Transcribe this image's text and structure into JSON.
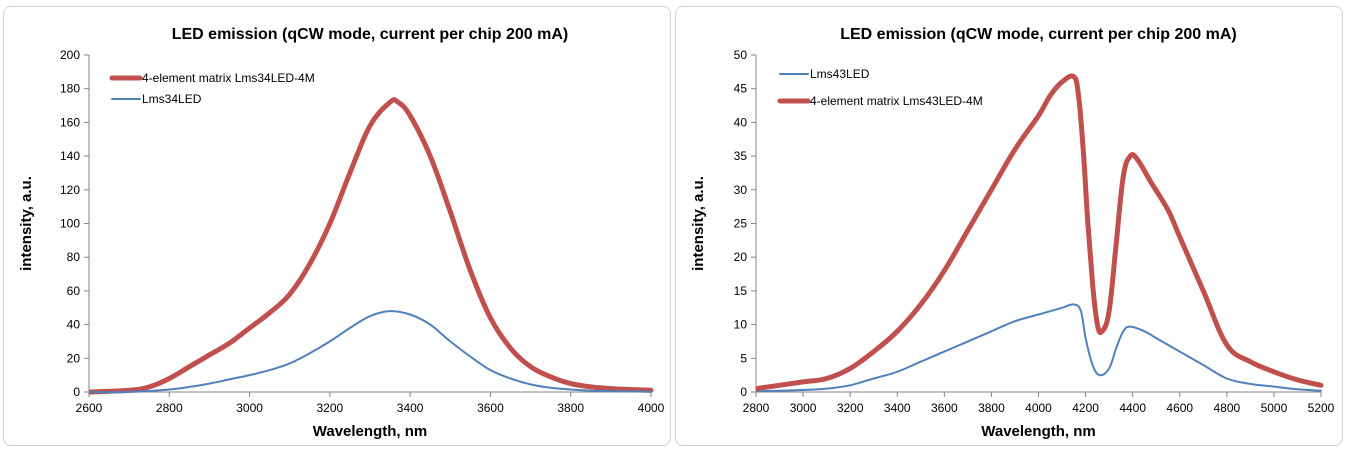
{
  "chart_data": [
    {
      "type": "line",
      "title": "LED emission (qCW mode, current per chip 200 mA)",
      "xlabel": "Wavelength, nm",
      "ylabel": "intensity, a.u.",
      "xlim": [
        2600,
        4000
      ],
      "ylim": [
        0,
        200
      ],
      "xticks": [
        2600,
        2800,
        3000,
        3200,
        3400,
        3600,
        3800,
        4000
      ],
      "yticks": [
        0,
        20,
        40,
        60,
        80,
        100,
        120,
        140,
        160,
        180,
        200
      ],
      "grid": false,
      "legend": "top-left",
      "series": [
        {
          "name": "4-element matrix Lms34LED-4M",
          "color": "#C0504D",
          "width": 5,
          "x": [
            2600,
            2700,
            2750,
            2800,
            2850,
            2900,
            2950,
            3000,
            3050,
            3100,
            3150,
            3200,
            3250,
            3300,
            3350,
            3370,
            3400,
            3450,
            3500,
            3550,
            3600,
            3650,
            3700,
            3750,
            3800,
            3850,
            3900,
            3950,
            4000
          ],
          "y": [
            0,
            1,
            3,
            8,
            15,
            22,
            29,
            38,
            47,
            58,
            76,
            100,
            130,
            158,
            172,
            172,
            164,
            140,
            107,
            72,
            44,
            26,
            15,
            9,
            5,
            3,
            2,
            1.5,
            1
          ]
        },
        {
          "name": "Lms34LED",
          "color": "#4F81BD",
          "width": 2,
          "x": [
            2600,
            2700,
            2800,
            2850,
            2900,
            2950,
            3000,
            3050,
            3100,
            3150,
            3200,
            3250,
            3300,
            3350,
            3400,
            3450,
            3500,
            3550,
            3600,
            3650,
            3700,
            3750,
            3800,
            3850,
            3900,
            3950,
            4000
          ],
          "y": [
            0,
            0,
            1.5,
            3,
            5,
            7.5,
            10,
            13,
            17,
            23,
            30,
            38,
            45,
            48,
            46,
            40,
            30,
            21,
            13,
            8,
            4.5,
            2.5,
            1.5,
            0.8,
            0.5,
            0.3,
            0.2
          ]
        }
      ]
    },
    {
      "type": "line",
      "title": "LED emission (qCW mode, current per chip 200 mA)",
      "xlabel": "Wavelength, nm",
      "ylabel": "intensity, a.u.",
      "xlim": [
        2800,
        5200
      ],
      "ylim": [
        0,
        50
      ],
      "xticks": [
        2800,
        3000,
        3200,
        3400,
        3600,
        3800,
        4000,
        4200,
        4400,
        4600,
        4800,
        5000,
        5200
      ],
      "yticks": [
        0,
        5,
        10,
        15,
        20,
        25,
        30,
        35,
        40,
        45,
        50
      ],
      "grid": false,
      "legend": "top-left",
      "series": [
        {
          "name": "Lms43LED",
          "color": "#4F81BD",
          "width": 2,
          "x": [
            2800,
            2900,
            3000,
            3100,
            3200,
            3300,
            3400,
            3500,
            3600,
            3700,
            3800,
            3900,
            4000,
            4100,
            4150,
            4180,
            4200,
            4230,
            4260,
            4300,
            4330,
            4360,
            4390,
            4450,
            4500,
            4600,
            4700,
            4800,
            4900,
            5000,
            5100,
            5200
          ],
          "y": [
            0.1,
            0.2,
            0.3,
            0.5,
            1,
            2,
            3,
            4.5,
            6,
            7.5,
            9,
            10.5,
            11.5,
            12.5,
            13,
            12,
            8,
            4,
            2.5,
            3.5,
            6.5,
            9,
            9.7,
            9,
            8,
            6,
            4,
            2,
            1.2,
            0.8,
            0.4,
            0.2
          ]
        },
        {
          "name": "4-element matrix Lms43LED-4M",
          "color": "#C0504D",
          "width": 5,
          "x": [
            2800,
            2900,
            3000,
            3100,
            3200,
            3300,
            3400,
            3500,
            3600,
            3700,
            3800,
            3900,
            4000,
            4050,
            4100,
            4150,
            4170,
            4190,
            4210,
            4230,
            4250,
            4270,
            4300,
            4330,
            4360,
            4390,
            4420,
            4480,
            4550,
            4600,
            4700,
            4800,
            4900,
            5000,
            5100,
            5200
          ],
          "y": [
            0.5,
            1,
            1.5,
            2,
            3.5,
            6,
            9,
            13,
            18,
            24,
            30,
            36,
            41,
            44,
            46,
            46.8,
            44,
            36,
            25,
            16,
            10,
            9,
            12,
            22,
            32,
            35,
            34.5,
            31,
            27,
            23,
            15,
            7,
            4.5,
            3,
            1.8,
            1
          ]
        }
      ]
    }
  ]
}
